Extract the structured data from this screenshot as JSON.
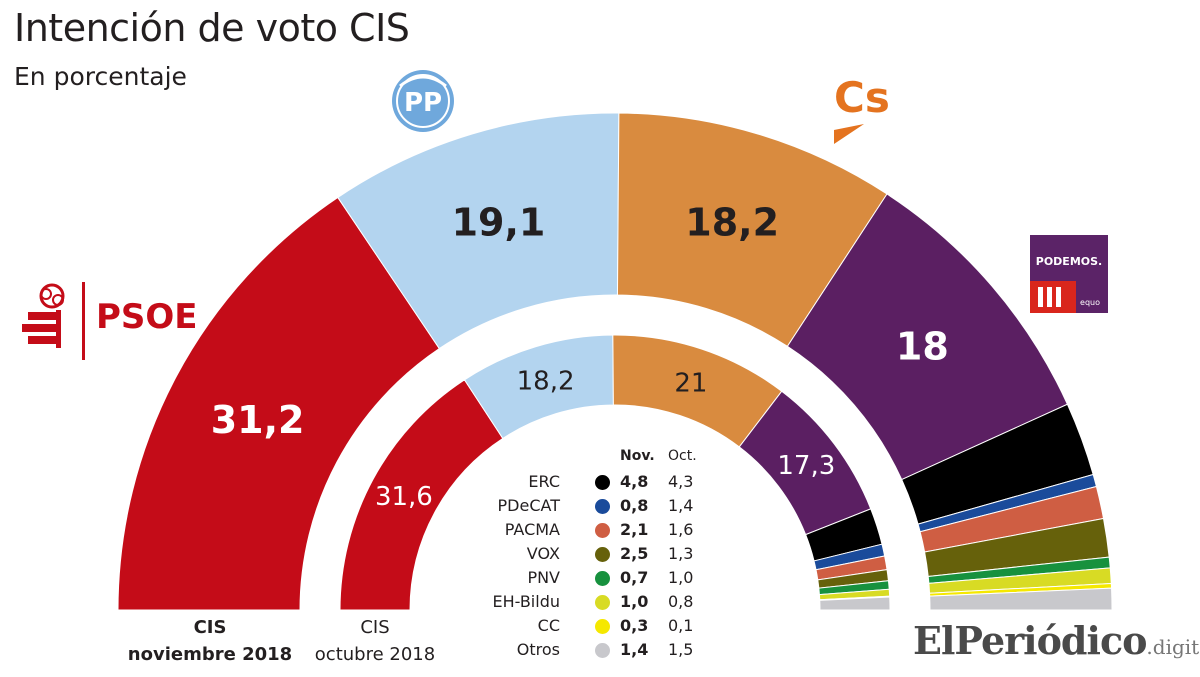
{
  "header": {
    "title": "Intención de voto CIS",
    "subtitle": "En porcentaje"
  },
  "chart_data": [
    {
      "type": "pie",
      "variant": "half-donut",
      "series_label": "CIS noviembre 2018",
      "parties": [
        "PSOE",
        "PP",
        "Cs",
        "Podemos",
        "ERC",
        "PDeCAT",
        "PACMA",
        "VOX",
        "PNV",
        "EH-Bildu",
        "CC",
        "Otros"
      ],
      "values": [
        31.2,
        19.1,
        18.2,
        18.0,
        4.8,
        0.8,
        2.1,
        2.5,
        0.7,
        1.0,
        0.3,
        1.4
      ],
      "data_labels": [
        "31,2",
        "19,1",
        "18,2",
        "18",
        "",
        "",
        "",
        "",
        "",
        "",
        "",
        ""
      ]
    },
    {
      "type": "pie",
      "variant": "half-donut",
      "series_label": "CIS octubre 2018",
      "parties": [
        "PSOE",
        "PP",
        "Cs",
        "Podemos",
        "ERC",
        "PDeCAT",
        "PACMA",
        "VOX",
        "PNV",
        "EH-Bildu",
        "CC",
        "Otros"
      ],
      "values": [
        31.6,
        18.2,
        21.0,
        17.3,
        4.3,
        1.4,
        1.6,
        1.3,
        1.0,
        0.8,
        0.1,
        1.5
      ],
      "data_labels": [
        "31,6",
        "18,2",
        "21",
        "17,3",
        "",
        "",
        "",
        "",
        "",
        "",
        "",
        ""
      ]
    }
  ],
  "colors": {
    "PSOE": "#c40c18",
    "PP": "#b3d4ef",
    "Cs": "#d98b3f",
    "Podemos": "#5b1f62",
    "ERC": "#000000",
    "PDeCAT": "#1a4b9b",
    "PACMA": "#cf5e43",
    "VOX": "#66610b",
    "PNV": "#17913e",
    "EH-Bildu": "#d8db24",
    "CC": "#f5e800",
    "Otros": "#c8c8cc"
  },
  "captions": {
    "nov_line1": "CIS",
    "nov_line2": "noviembre 2018",
    "oct_line1": "CIS",
    "oct_line2": "octubre 2018"
  },
  "legend": {
    "header_nov": "Nov.",
    "header_oct": "Oct.",
    "rows": [
      {
        "name": "ERC",
        "nov": "4,8",
        "oct": "4,3"
      },
      {
        "name": "PDeCAT",
        "nov": "0,8",
        "oct": "1,4"
      },
      {
        "name": "PACMA",
        "nov": "2,1",
        "oct": "1,6"
      },
      {
        "name": "VOX",
        "nov": "2,5",
        "oct": "1,3"
      },
      {
        "name": "PNV",
        "nov": "0,7",
        "oct": "1,0"
      },
      {
        "name": "EH-Bildu",
        "nov": "1,0",
        "oct": "0,8"
      },
      {
        "name": "CC",
        "nov": "0,3",
        "oct": "0,1"
      },
      {
        "name": "Otros",
        "nov": "1,4",
        "oct": "1,5"
      }
    ]
  },
  "logos": {
    "psoe": "PSOE",
    "pp": "PP",
    "cs": "Cs",
    "podemos": "PODEMOS.",
    "equo": "equo"
  },
  "brand": {
    "name": "ElPeriódico",
    "suffix": ".digital"
  }
}
